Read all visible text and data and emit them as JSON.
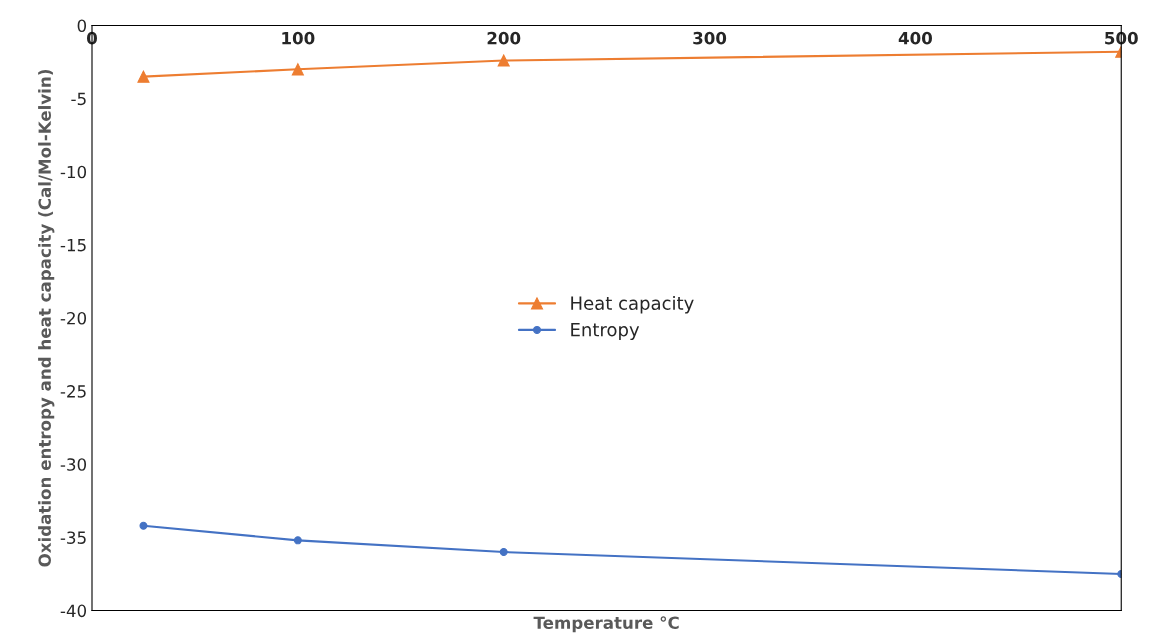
{
  "chart_data": {
    "type": "line",
    "xlabel": "Temperature °C",
    "ylabel": "Oxidation entropy and heat capacity (Cal/Mol-Kelvin)",
    "x": [
      25,
      100,
      200,
      500
    ],
    "series": [
      {
        "name": "Heat capacity",
        "color": "#ed7d31",
        "marker": "triangle",
        "values": [
          -3.5,
          -3.0,
          -2.4,
          -1.8
        ]
      },
      {
        "name": "Entropy",
        "color": "#4472c4",
        "marker": "circle",
        "values": [
          -34.2,
          -35.2,
          -36.0,
          -37.5
        ]
      }
    ],
    "xlim": [
      0,
      500
    ],
    "xticks": [
      0,
      100,
      200,
      300,
      400,
      500
    ],
    "ylim": [
      -40,
      0
    ],
    "yticks": [
      -40,
      -35,
      -30,
      -25,
      -20,
      -15,
      -10,
      -5,
      0
    ],
    "grid": false,
    "legend": "center"
  }
}
